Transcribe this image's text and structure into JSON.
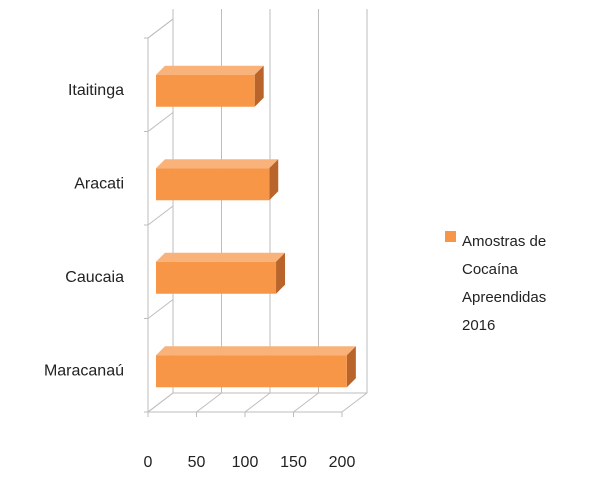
{
  "chart_data": {
    "type": "bar3d_horizontal",
    "categories": [
      "Itaitinga",
      "Aracati",
      "Caucaia",
      "Maracanaú"
    ],
    "series": [
      {
        "name": "Amostras de Cocaína Apreendidas 2016",
        "color": "#f79646",
        "values": [
          110,
          125,
          132,
          205
        ]
      }
    ],
    "xlim": [
      0,
      200
    ],
    "xticks": [
      0,
      50,
      100,
      150,
      200
    ],
    "grid": true,
    "legend": "right"
  }
}
